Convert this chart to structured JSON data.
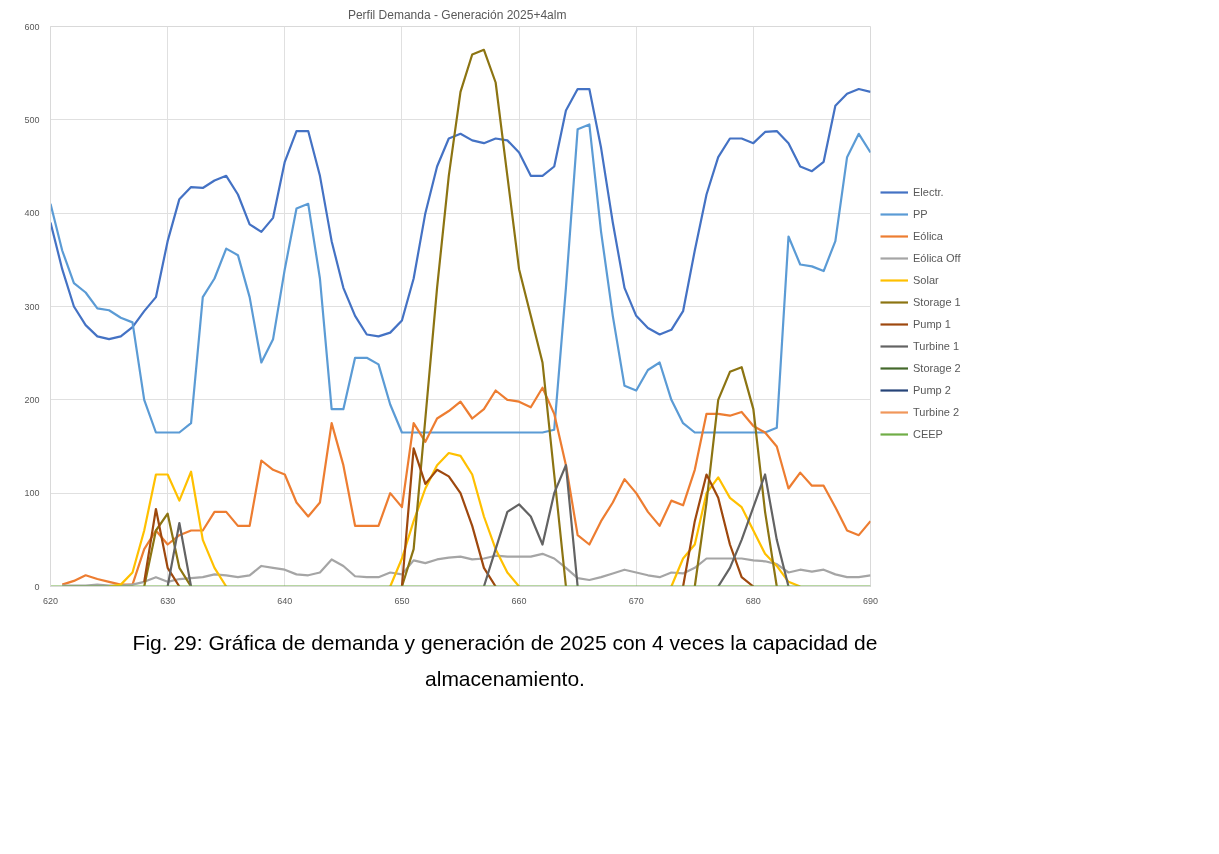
{
  "chart_data": {
    "type": "line",
    "title": "Perfil  Demanda - Generación  2025+4alm",
    "annotations": [
      "Fig. 29: Gráfica de demanda y generación de 2025 con 4 veces la capacidad de almacenamiento."
    ],
    "x": [
      620,
      621,
      622,
      623,
      624,
      625,
      626,
      627,
      628,
      629,
      630,
      631,
      632,
      633,
      634,
      635,
      636,
      637,
      638,
      639,
      640,
      641,
      642,
      643,
      644,
      645,
      646,
      647,
      648,
      649,
      650,
      651,
      652,
      653,
      654,
      655,
      656,
      657,
      658,
      659,
      660,
      661,
      662,
      663,
      664,
      665,
      666,
      667,
      668,
      669,
      670,
      671,
      672,
      673,
      674,
      675,
      676,
      677,
      678,
      679,
      680,
      681,
      682,
      683,
      684,
      685,
      686,
      687,
      688,
      689,
      690
    ],
    "xlim": [
      620,
      690
    ],
    "xticks": [
      620,
      630,
      640,
      650,
      660,
      670,
      680,
      690
    ],
    "ylim": [
      0,
      600
    ],
    "yticks": [
      0,
      100,
      200,
      300,
      400,
      500,
      600
    ],
    "grid": true,
    "legend": "right",
    "marker": "none",
    "line_style": "solid",
    "series": [
      {
        "name": "Electr.",
        "color": "#4472c4",
        "values": [
          390,
          340,
          300,
          280,
          268,
          265,
          268,
          278,
          295,
          310,
          370,
          415,
          428,
          427,
          435,
          440,
          420,
          388,
          380,
          395,
          455,
          488,
          488,
          440,
          370,
          320,
          290,
          270,
          268,
          272,
          285,
          330,
          400,
          450,
          480,
          485,
          478,
          475,
          480,
          478,
          465,
          440,
          440,
          450,
          510,
          533,
          533,
          470,
          390,
          320,
          290,
          277,
          270,
          275,
          295,
          360,
          420,
          460,
          480,
          480,
          475,
          487,
          488,
          475,
          450,
          445,
          455,
          515,
          528,
          533,
          530
        ]
      },
      {
        "name": "PP",
        "color": "#5b9bd5",
        "values": [
          410,
          360,
          325,
          315,
          298,
          296,
          288,
          283,
          200,
          165,
          165,
          165,
          175,
          310,
          330,
          362,
          355,
          310,
          240,
          265,
          340,
          405,
          410,
          330,
          190,
          190,
          245,
          245,
          238,
          195,
          165,
          165,
          165,
          165,
          165,
          165,
          165,
          165,
          165,
          165,
          165,
          165,
          165,
          168,
          320,
          490,
          495,
          380,
          290,
          215,
          210,
          232,
          240,
          200,
          175,
          165,
          165,
          165,
          165,
          165,
          165,
          165,
          170,
          375,
          345,
          343,
          338,
          370,
          460,
          485,
          465
        ]
      },
      {
        "name": "Eólica",
        "color": "#ed7d31",
        "values": [
          null,
          2,
          6,
          12,
          8,
          5,
          2,
          2,
          40,
          60,
          45,
          55,
          60,
          60,
          80,
          80,
          65,
          65,
          135,
          125,
          120,
          90,
          75,
          90,
          175,
          130,
          65,
          65,
          65,
          100,
          85,
          175,
          155,
          180,
          188,
          198,
          180,
          190,
          210,
          200,
          198,
          192,
          213,
          185,
          130,
          55,
          45,
          70,
          90,
          115,
          100,
          80,
          65,
          92,
          87,
          125,
          185,
          185,
          183,
          187,
          172,
          165,
          150,
          105,
          122,
          108,
          108,
          85,
          60,
          55,
          70
        ]
      },
      {
        "name": "Eólica Off",
        "color": "#a5a5a5",
        "values": [
          null,
          1,
          1,
          1,
          2,
          1,
          1,
          2,
          5,
          10,
          5,
          8,
          9,
          10,
          13,
          12,
          10,
          12,
          22,
          20,
          18,
          13,
          12,
          15,
          29,
          22,
          11,
          10,
          10,
          15,
          13,
          28,
          25,
          29,
          31,
          32,
          29,
          30,
          33,
          32,
          32,
          32,
          35,
          30,
          20,
          9,
          7,
          10,
          14,
          18,
          15,
          12,
          10,
          15,
          14,
          20,
          30,
          30,
          30,
          30,
          28,
          27,
          24,
          15,
          18,
          16,
          18,
          13,
          10,
          10,
          12
        ]
      },
      {
        "name": "Solar",
        "color": "#ffc000",
        "values": [
          null,
          null,
          null,
          null,
          null,
          0,
          2,
          15,
          60,
          120,
          120,
          92,
          123,
          50,
          20,
          0,
          null,
          null,
          null,
          null,
          null,
          null,
          null,
          null,
          null,
          null,
          null,
          null,
          null,
          0,
          30,
          70,
          105,
          130,
          143,
          140,
          120,
          75,
          40,
          15,
          0,
          null,
          null,
          null,
          null,
          null,
          null,
          null,
          null,
          null,
          null,
          null,
          null,
          0,
          30,
          45,
          100,
          117,
          95,
          85,
          60,
          35,
          22,
          5,
          0,
          null,
          null,
          null,
          null,
          null,
          null
        ]
      },
      {
        "name": "Storage 1",
        "color": "#8c7412",
        "values": [
          null,
          null,
          null,
          null,
          null,
          null,
          null,
          null,
          0,
          60,
          78,
          20,
          0,
          null,
          null,
          null,
          null,
          null,
          null,
          null,
          null,
          null,
          null,
          null,
          null,
          null,
          null,
          null,
          null,
          null,
          0,
          40,
          180,
          320,
          440,
          530,
          570,
          575,
          540,
          440,
          340,
          290,
          240,
          120,
          0,
          null,
          null,
          null,
          null,
          null,
          null,
          null,
          null,
          null,
          null,
          0,
          90,
          200,
          230,
          235,
          190,
          80,
          0,
          null,
          null,
          null,
          null,
          null,
          null,
          null,
          null
        ]
      },
      {
        "name": "Pump 1",
        "color": "#9e480e",
        "values": [
          null,
          null,
          null,
          null,
          null,
          null,
          null,
          null,
          5,
          83,
          20,
          0,
          null,
          null,
          null,
          null,
          null,
          null,
          null,
          null,
          null,
          null,
          null,
          null,
          null,
          null,
          null,
          null,
          null,
          null,
          0,
          148,
          110,
          125,
          118,
          100,
          65,
          20,
          0,
          null,
          null,
          null,
          null,
          null,
          null,
          null,
          null,
          null,
          null,
          null,
          null,
          null,
          null,
          null,
          0,
          70,
          120,
          95,
          45,
          10,
          0,
          null,
          null,
          null,
          null,
          null,
          null,
          null,
          null,
          null,
          null
        ]
      },
      {
        "name": "Turbine 1",
        "color": "#636363",
        "values": [
          null,
          null,
          null,
          null,
          null,
          null,
          null,
          null,
          null,
          null,
          0,
          68,
          0,
          null,
          null,
          null,
          null,
          null,
          null,
          null,
          null,
          null,
          null,
          null,
          null,
          null,
          null,
          null,
          null,
          null,
          null,
          null,
          null,
          null,
          null,
          null,
          null,
          0,
          40,
          80,
          88,
          75,
          45,
          100,
          130,
          0,
          null,
          null,
          null,
          null,
          null,
          null,
          null,
          null,
          null,
          null,
          null,
          0,
          20,
          50,
          85,
          120,
          50,
          0,
          null,
          null,
          null,
          null,
          null,
          null,
          null
        ]
      },
      {
        "name": "Storage 2",
        "color": "#43682b",
        "values": [
          null,
          null,
          null,
          null,
          null,
          null,
          null,
          null,
          null,
          null,
          null,
          null,
          null,
          null,
          null,
          null,
          null,
          null,
          null,
          null,
          null,
          null,
          null,
          null,
          null,
          null,
          null,
          null,
          null,
          null,
          null,
          null,
          null,
          null,
          null,
          null,
          null,
          null,
          null,
          null,
          null,
          null,
          null,
          null,
          null,
          null,
          null,
          null,
          null,
          null,
          null,
          null,
          null,
          null,
          null,
          null,
          null,
          null,
          null,
          null,
          null,
          null,
          null,
          null,
          null,
          null,
          null,
          null,
          null,
          null,
          null
        ]
      },
      {
        "name": "Pump 2",
        "color": "#264478",
        "values": [
          null,
          null,
          null,
          null,
          null,
          null,
          null,
          null,
          null,
          null,
          null,
          null,
          null,
          null,
          null,
          null,
          null,
          null,
          null,
          null,
          null,
          null,
          null,
          null,
          null,
          null,
          null,
          null,
          null,
          null,
          null,
          null,
          null,
          null,
          null,
          null,
          null,
          null,
          null,
          null,
          null,
          null,
          null,
          null,
          null,
          null,
          null,
          null,
          null,
          null,
          null,
          null,
          null,
          null,
          null,
          null,
          null,
          null,
          null,
          null,
          null,
          null,
          null,
          null,
          null,
          null,
          null,
          null,
          null,
          null,
          null
        ]
      },
      {
        "name": "Turbine 2",
        "color": "#f1975a",
        "values": [
          null,
          null,
          null,
          null,
          null,
          null,
          null,
          null,
          null,
          null,
          null,
          null,
          null,
          null,
          null,
          null,
          null,
          null,
          null,
          null,
          null,
          null,
          null,
          null,
          null,
          null,
          null,
          null,
          null,
          null,
          null,
          null,
          null,
          null,
          null,
          null,
          null,
          null,
          null,
          null,
          null,
          null,
          null,
          null,
          null,
          null,
          null,
          null,
          null,
          null,
          null,
          null,
          null,
          null,
          null,
          null,
          null,
          null,
          null,
          null,
          null,
          null,
          null,
          null,
          null,
          null,
          null,
          null,
          null,
          null,
          null
        ]
      },
      {
        "name": "CEEP",
        "color": "#70ad47",
        "values": [
          0,
          0,
          0,
          0,
          0,
          0,
          0,
          0,
          0,
          0,
          0,
          0,
          0,
          0,
          0,
          0,
          0,
          0,
          0,
          0,
          0,
          0,
          0,
          0,
          0,
          0,
          0,
          0,
          0,
          0,
          0,
          0,
          0,
          0,
          0,
          0,
          0,
          0,
          0,
          0,
          0,
          0,
          0,
          0,
          0,
          0,
          0,
          0,
          0,
          0,
          0,
          0,
          0,
          0,
          0,
          0,
          0,
          0,
          0,
          0,
          0,
          0,
          0,
          0,
          0,
          0,
          0,
          0,
          0,
          0,
          0
        ]
      }
    ]
  }
}
